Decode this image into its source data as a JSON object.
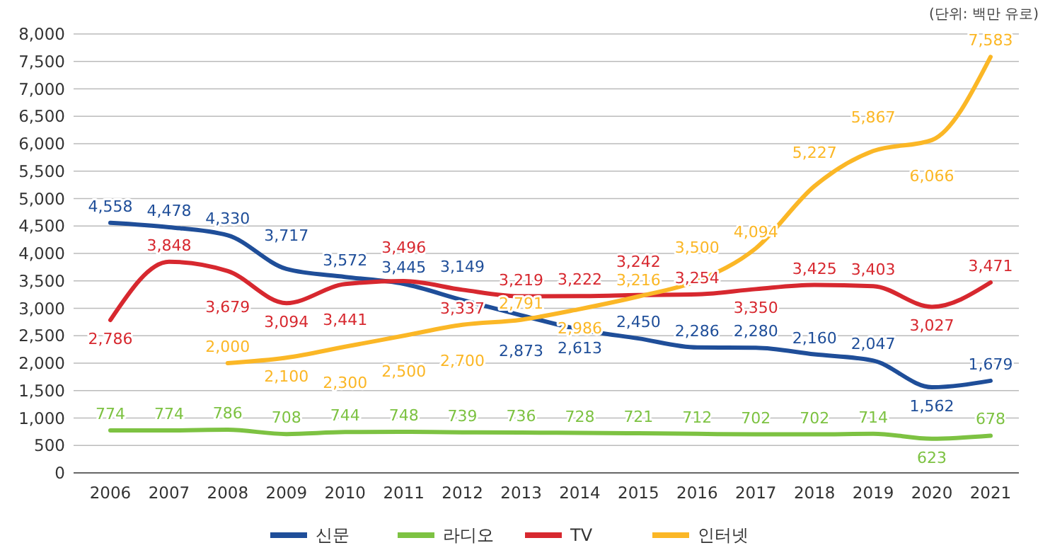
{
  "chart_data": {
    "type": "line",
    "annotations": [
      "(단위: 백만 유로)"
    ],
    "categories": [
      "2006",
      "2007",
      "2008",
      "2009",
      "2010",
      "2011",
      "2012",
      "2013",
      "2014",
      "2015",
      "2016",
      "2017",
      "2018",
      "2019",
      "2020",
      "2021"
    ],
    "series": [
      {
        "name": "신문",
        "color": "#1f4e99",
        "values": [
          4558,
          4478,
          4330,
          3717,
          3572,
          3445,
          3149,
          2873,
          2613,
          2450,
          2286,
          2280,
          2160,
          2047,
          1562,
          1679
        ],
        "value_labels": [
          "4,558",
          "4,478",
          "4,330",
          "3,717",
          "3,572",
          "3,445",
          "3,149",
          "2,873",
          "2,613",
          "2,450",
          "2,286",
          "2,280",
          "2,160",
          "2,047",
          "1,562",
          "1,679"
        ]
      },
      {
        "name": "라디오",
        "color": "#7dc242",
        "values": [
          774,
          774,
          786,
          708,
          744,
          748,
          739,
          736,
          728,
          721,
          712,
          702,
          702,
          714,
          623,
          678
        ],
        "value_labels": [
          "774",
          "774",
          "786",
          "708",
          "744",
          "748",
          "739",
          "736",
          "728",
          "721",
          "712",
          "702",
          "702",
          "714",
          "623",
          "678"
        ]
      },
      {
        "name": "TV",
        "color": "#d7282f",
        "values": [
          2786,
          3848,
          3679,
          3094,
          3441,
          3496,
          3337,
          3219,
          3222,
          3242,
          3254,
          3350,
          3425,
          3403,
          3027,
          3471
        ],
        "value_labels": [
          "2,786",
          "3,848",
          "3,679",
          "3,094",
          "3,441",
          "3,496",
          "3,337",
          "3,219",
          "3,222",
          "3,242",
          "3,254",
          "3,350",
          "3,425",
          "3,403",
          "3,027",
          "3,471"
        ]
      },
      {
        "name": "인터넷",
        "color": "#fbb726",
        "values": [
          null,
          null,
          2000,
          2100,
          2300,
          2500,
          2700,
          2791,
          2986,
          3216,
          3500,
          4094,
          5227,
          5867,
          6066,
          7583
        ],
        "value_labels": [
          null,
          null,
          "2,000",
          "2,100",
          "2,300",
          "2,500",
          "2,700",
          "2,791",
          "2,986",
          "3,216",
          "3,500",
          "4,094",
          "5,227",
          "5,867",
          "6,066",
          "7,583"
        ]
      }
    ],
    "ylim": [
      0,
      8000
    ],
    "yticks": [
      {
        "value": 0,
        "label": "0"
      },
      {
        "value": 500,
        "label": "500"
      },
      {
        "value": 1000,
        "label": "1,000"
      },
      {
        "value": 1500,
        "label": "1,500"
      },
      {
        "value": 2000,
        "label": "2,000"
      },
      {
        "value": 2500,
        "label": "2,500"
      },
      {
        "value": 3000,
        "label": "3,000"
      },
      {
        "value": 3500,
        "label": "3,500"
      },
      {
        "value": 4000,
        "label": "4,000"
      },
      {
        "value": 4500,
        "label": "4,500"
      },
      {
        "value": 5000,
        "label": "5,000"
      },
      {
        "value": 5500,
        "label": "5,500"
      },
      {
        "value": 6000,
        "label": "6,000"
      },
      {
        "value": 6500,
        "label": "6,500"
      },
      {
        "value": 7000,
        "label": "7,000"
      },
      {
        "value": 7500,
        "label": "7,500"
      },
      {
        "value": 8000,
        "label": "8,000"
      }
    ],
    "grid": "y",
    "legend": "bottom",
    "marker": "none",
    "line_style": "solid"
  }
}
